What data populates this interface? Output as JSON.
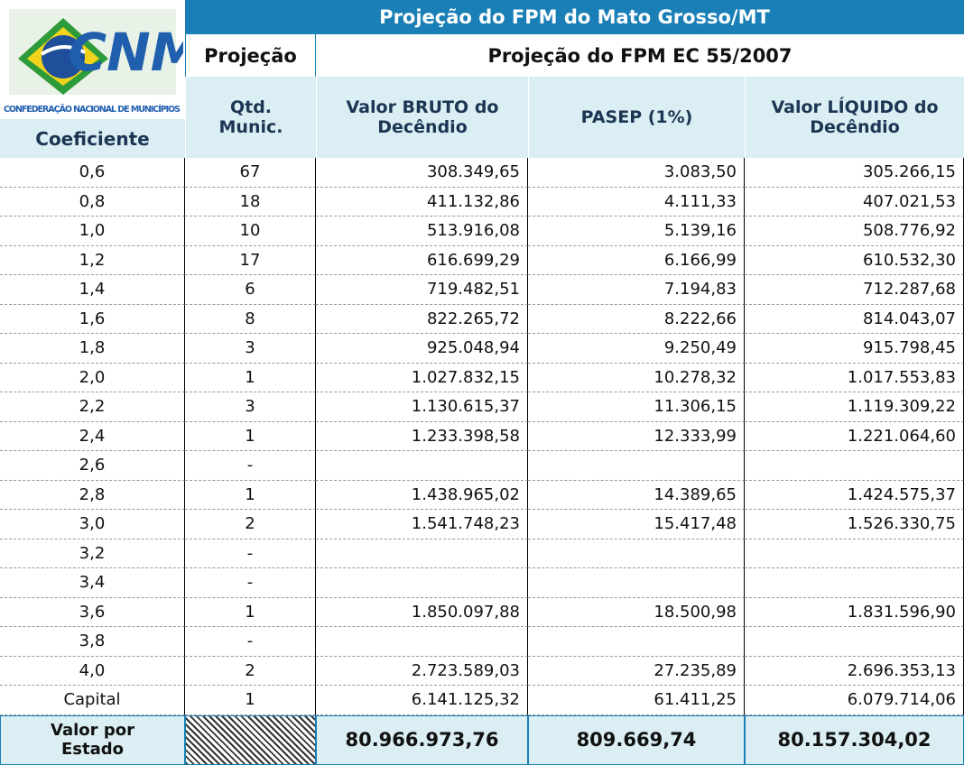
{
  "logo": {
    "text": "CNM",
    "subtitle": "CONFEDERAÇÃO NACIONAL DE MUNICÍPIOS"
  },
  "header": {
    "title": "Projeção do FPM do Mato Grosso/MT",
    "group_left": "Projeção",
    "group_right": "Projeção do FPM EC 55/2007"
  },
  "table": {
    "columns": [
      "Coeficiente",
      "Qtd.\nMunic.",
      "Valor BRUTO do\nDecêndio",
      "PASEP (1%)",
      "Valor LÍQUIDO do\nDecêndio"
    ],
    "rows": [
      [
        "0,6",
        "67",
        "308.349,65",
        "3.083,50",
        "305.266,15"
      ],
      [
        "0,8",
        "18",
        "411.132,86",
        "4.111,33",
        "407.021,53"
      ],
      [
        "1,0",
        "10",
        "513.916,08",
        "5.139,16",
        "508.776,92"
      ],
      [
        "1,2",
        "17",
        "616.699,29",
        "6.166,99",
        "610.532,30"
      ],
      [
        "1,4",
        "6",
        "719.482,51",
        "7.194,83",
        "712.287,68"
      ],
      [
        "1,6",
        "8",
        "822.265,72",
        "8.222,66",
        "814.043,07"
      ],
      [
        "1,8",
        "3",
        "925.048,94",
        "9.250,49",
        "915.798,45"
      ],
      [
        "2,0",
        "1",
        "1.027.832,15",
        "10.278,32",
        "1.017.553,83"
      ],
      [
        "2,2",
        "3",
        "1.130.615,37",
        "11.306,15",
        "1.119.309,22"
      ],
      [
        "2,4",
        "1",
        "1.233.398,58",
        "12.333,99",
        "1.221.064,60"
      ],
      [
        "2,6",
        "-",
        null,
        null,
        null
      ],
      [
        "2,8",
        "1",
        "1.438.965,02",
        "14.389,65",
        "1.424.575,37"
      ],
      [
        "3,0",
        "2",
        "1.541.748,23",
        "15.417,48",
        "1.526.330,75"
      ],
      [
        "3,2",
        "-",
        null,
        null,
        null
      ],
      [
        "3,4",
        "-",
        null,
        null,
        null
      ],
      [
        "3,6",
        "1",
        "1.850.097,88",
        "18.500,98",
        "1.831.596,90"
      ],
      [
        "3,8",
        "-",
        null,
        null,
        null
      ],
      [
        "4,0",
        "2",
        "2.723.589,03",
        "27.235,89",
        "2.696.353,13"
      ],
      [
        "Capital",
        "1",
        "6.141.125,32",
        "61.411,25",
        "6.079.714,06"
      ]
    ],
    "footer": [
      "Valor por\nEstado",
      null,
      "80.966.973,76",
      "809.669,74",
      "80.157.304,02"
    ]
  }
}
